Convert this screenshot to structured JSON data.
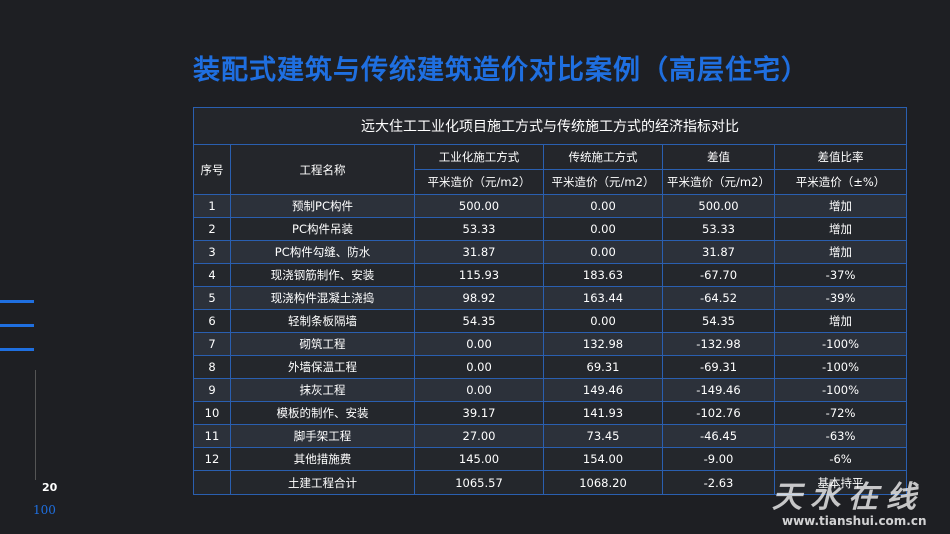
{
  "title": "装配式建筑与传统建筑造价对比案例（高层住宅）",
  "page": {
    "number": "20",
    "sub": "100"
  },
  "table": {
    "caption": "远大住工工业化项目施工方式与传统施工方式的经济指标对比",
    "headers": {
      "seq": "序号",
      "name": "工程名称",
      "industrial": "工业化施工方式",
      "traditional": "传统施工方式",
      "diff": "差值",
      "ratio": "差值比率",
      "industrial_unit": "平米造价（元/m2）",
      "traditional_unit": "平米造价（元/m2）",
      "diff_unit": "平米造价（元/m2）",
      "ratio_unit": "平米造价（±%）"
    },
    "rows": [
      [
        "1",
        "预制PC构件",
        "500.00",
        "0.00",
        "500.00",
        "增加"
      ],
      [
        "2",
        "PC构件吊装",
        "53.33",
        "0.00",
        "53.33",
        "增加"
      ],
      [
        "3",
        "PC构件勾缝、防水",
        "31.87",
        "0.00",
        "31.87",
        "增加"
      ],
      [
        "4",
        "现浇钢筋制作、安装",
        "115.93",
        "183.63",
        "-67.70",
        "-37%"
      ],
      [
        "5",
        "现浇构件混凝土浇捣",
        "98.92",
        "163.44",
        "-64.52",
        "-39%"
      ],
      [
        "6",
        "轻制条板隔墙",
        "54.35",
        "0.00",
        "54.35",
        "增加"
      ],
      [
        "7",
        "砌筑工程",
        "0.00",
        "132.98",
        "-132.98",
        "-100%"
      ],
      [
        "8",
        "外墙保温工程",
        "0.00",
        "69.31",
        "-69.31",
        "-100%"
      ],
      [
        "9",
        "抹灰工程",
        "0.00",
        "149.46",
        "-149.46",
        "-100%"
      ],
      [
        "10",
        "模板的制作、安装",
        "39.17",
        "141.93",
        "-102.76",
        "-72%"
      ],
      [
        "11",
        "脚手架工程",
        "27.00",
        "73.45",
        "-46.45",
        "-63%"
      ],
      [
        "12",
        "其他措施费",
        "145.00",
        "154.00",
        "-9.00",
        "-6%"
      ]
    ],
    "total": [
      "",
      "土建工程合计",
      "1065.57",
      "1068.20",
      "-2.63",
      "基本持平"
    ]
  },
  "watermark": {
    "chars": "天水在线",
    "url": "www.tianshui.com.cn"
  }
}
